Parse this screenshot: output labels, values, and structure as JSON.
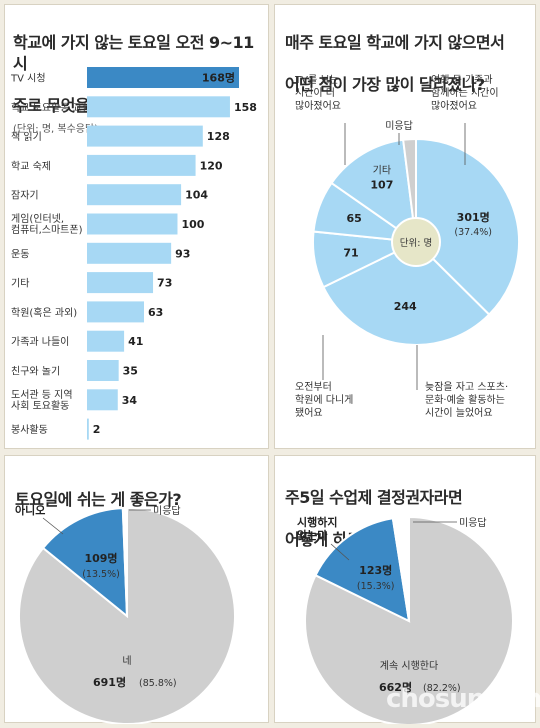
{
  "panels": {
    "activity": {
      "title_l1": "학교에 가지 않는 토요일 오전 9~11시",
      "title_l2": "주로 무엇을 하나?",
      "unit": "(단위: 명, 복수응답)"
    },
    "change": {
      "title_l1": "매주 토요일 학교에 가지 않으면서",
      "title_l2": "어떤 점이 가장 많이 달라졌나?",
      "center_label": "단위: 명"
    },
    "rest": {
      "title": "토요일에 쉬는 게 좋은가?"
    },
    "decision": {
      "title_l1": "주5일 수업제 결정권자라면",
      "title_l2": "어떻게 하고 싶은가?"
    }
  },
  "watermark": "chosun.com",
  "chart_data": [
    {
      "type": "bar",
      "title": "학교에 가지 않는 토요일 오전 9~11시 주로 무엇을 하나?",
      "unit": "(단위: 명, 복수응답)",
      "categories": [
        "TV 시청",
        "학교 토요활동 교실",
        "책 읽기",
        "학교 숙제",
        "잠자기",
        "게임(인터넷, 컴퓨터, 스마트폰)",
        "운동",
        "기타",
        "학원(혹은 과외)",
        "가족과 나들이",
        "친구와 놀기",
        "도서관 등 지역 사회 토요활동",
        "봉사활동"
      ],
      "category_lines": [
        [
          "TV 시청"
        ],
        [
          "학교 토요활동 교실"
        ],
        [
          "책 읽기"
        ],
        [
          "학교 숙제"
        ],
        [
          "잠자기"
        ],
        [
          "게임(인터넷,",
          "컴퓨터,스마트폰)"
        ],
        [
          "운동"
        ],
        [
          "기타"
        ],
        [
          "학원(혹은 과외)"
        ],
        [
          "가족과 나들이"
        ],
        [
          "친구와 놀기"
        ],
        [
          "도서관 등 지역",
          "사회 토요활동"
        ],
        [
          "봉사활동"
        ]
      ],
      "values": [
        168,
        158,
        128,
        120,
        104,
        100,
        93,
        73,
        63,
        41,
        35,
        34,
        2
      ],
      "value_labels": [
        "168명",
        "158",
        "128",
        "120",
        "104",
        "100",
        "93",
        "73",
        "63",
        "41",
        "35",
        "34",
        "2"
      ],
      "highlight_index": 0,
      "colors": {
        "bar": "#a7d8f4",
        "highlight": "#3b89c5",
        "text_on_highlight": "#ffffff"
      }
    },
    {
      "type": "pie",
      "title": "매주 토요일 학교에 가지 않으면서 어떤 점이 가장 많이 달라졌나?",
      "labels": [
        "여행 등 가족과 함께하는 시간이 많아졌어요",
        "늦잠을 자고 스포츠·문화·예술 활동하는 시간이 늘었어요",
        "오전부터 학원에 다니게 됐어요",
        "TV를 보는 시간이 더 많아졌어요",
        "기타",
        "미응답"
      ],
      "label_lines": [
        [
          "여행 등 가족과",
          "함께하는 시간이",
          "많아졌어요"
        ],
        [
          "늦잠을 자고 스포츠·",
          "문화·예술 활동하는",
          "시간이 늘었어요"
        ],
        [
          "오전부터",
          "학원에 다니게",
          "됐어요"
        ],
        [
          "TV를 보는",
          "시간이 더",
          "많아졌어요"
        ],
        [
          "기타"
        ],
        [
          "미응답"
        ]
      ],
      "values": [
        301,
        244,
        71,
        65,
        107,
        16
      ],
      "value_labels": [
        "301명",
        "244",
        "71",
        "65",
        "107",
        ""
      ],
      "percent_labels": [
        "(37.4%)",
        "",
        "",
        "",
        "",
        ""
      ],
      "center_label": "단위: 명",
      "colors": [
        "#a7d8f4",
        "#a7d8f4",
        "#a7d8f4",
        "#a7d8f4",
        "#a7d8f4",
        "#cfcfcf"
      ]
    },
    {
      "type": "pie",
      "title": "토요일에 쉬는 게 좋은가?",
      "labels": [
        "네",
        "아니오",
        "미응답"
      ],
      "values": [
        691,
        109,
        5
      ],
      "value_labels": [
        "691명",
        "109명",
        ""
      ],
      "percent_labels": [
        "(85.8%)",
        "(13.5%)",
        ""
      ],
      "colors": [
        "#cfcfcf",
        "#3b89c5",
        "#ffffff"
      ]
    },
    {
      "type": "pie",
      "title": "주5일 수업제 결정권자라면 어떻게 하고 싶은가?",
      "labels": [
        "계속 시행한다",
        "시행하지 않는다",
        "미응답"
      ],
      "label_lines": [
        [
          "계속 시행한다"
        ],
        [
          "시행하지",
          "않는다"
        ],
        [
          "미응답"
        ]
      ],
      "values": [
        662,
        123,
        20
      ],
      "value_labels": [
        "662명",
        "123명",
        ""
      ],
      "percent_labels": [
        "(82.2%)",
        "(15.3%)",
        ""
      ],
      "colors": [
        "#cfcfcf",
        "#3b89c5",
        "#ffffff"
      ]
    }
  ]
}
